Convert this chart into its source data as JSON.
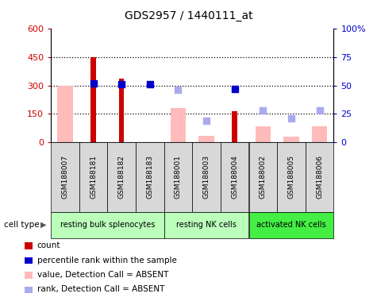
{
  "title": "GDS2957 / 1440111_at",
  "samples": [
    "GSM188007",
    "GSM188181",
    "GSM188182",
    "GSM188183",
    "GSM188001",
    "GSM188003",
    "GSM188004",
    "GSM188002",
    "GSM188005",
    "GSM188006"
  ],
  "cell_types": [
    {
      "label": "resting bulk splenocytes",
      "start": 0,
      "end": 4,
      "color": "#bbffbb"
    },
    {
      "label": "resting NK cells",
      "start": 4,
      "end": 7,
      "color": "#bbffbb"
    },
    {
      "label": "activated NK cells",
      "start": 7,
      "end": 10,
      "color": "#44ee44"
    }
  ],
  "count_values": [
    null,
    450,
    335,
    null,
    null,
    null,
    162,
    null,
    null,
    null
  ],
  "count_color": "#cc0000",
  "percentile_values_pct": [
    null,
    52,
    51,
    51,
    null,
    null,
    47,
    null,
    null,
    null
  ],
  "percentile_color": "#0000cc",
  "absent_value_values": [
    298,
    null,
    null,
    null,
    178,
    30,
    null,
    82,
    28,
    82
  ],
  "absent_value_color": "#ffbbbb",
  "absent_rank_values_pct": [
    null,
    null,
    null,
    null,
    46,
    19,
    null,
    28,
    21,
    28
  ],
  "absent_rank_color": "#aaaaee",
  "ylim_left": [
    0,
    600
  ],
  "ylim_right": [
    0,
    100
  ],
  "yticks_left": [
    0,
    150,
    300,
    450,
    600
  ],
  "yticks_right": [
    0,
    25,
    50,
    75,
    100
  ],
  "background_color": "#ffffff"
}
